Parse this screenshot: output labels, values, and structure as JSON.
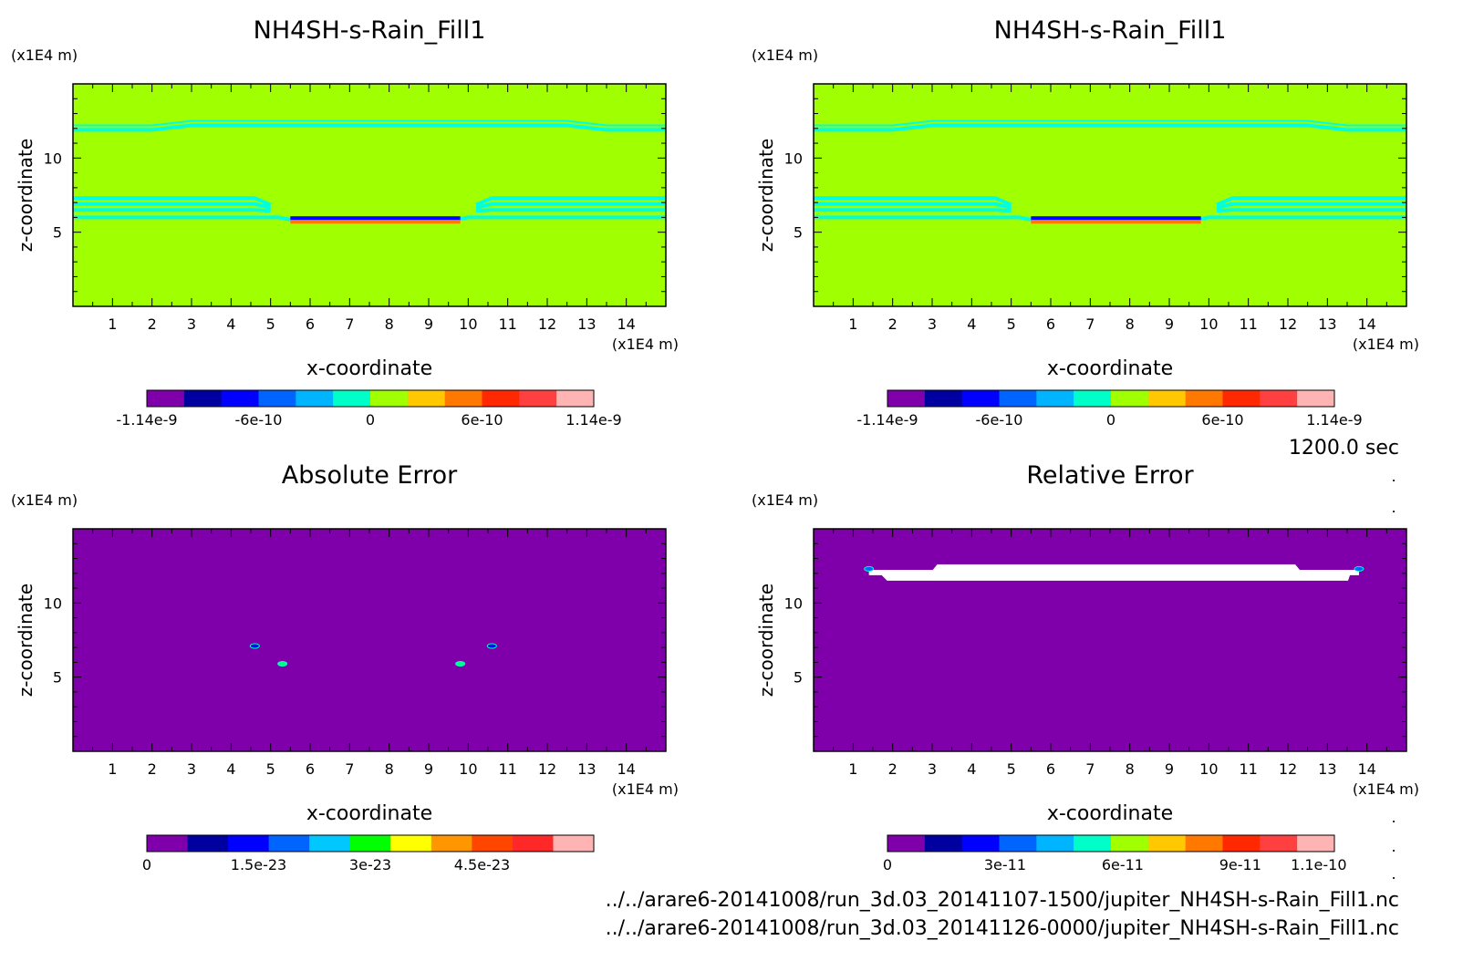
{
  "time_label": "1200.0 sec",
  "footer": {
    "line1": "../../arare6-20141008/run_3d.03_20141107-1500/jupiter_NH4SH-s-Rain_Fill1.nc",
    "line2": "../../arare6-20141008/run_3d.03_20141126-0000/jupiter_NH4SH-s-Rain_Fill1.nc"
  },
  "chart_data": [
    {
      "type": "heatmap",
      "title": "NH4SH-s-Rain_Fill1",
      "xlabel": "x-coordinate",
      "ylabel": "z-coordinate",
      "x_unit": "(x1E4 m)",
      "y_unit": "(x1E4 m)",
      "xlim": [
        0,
        15
      ],
      "ylim": [
        0,
        15
      ],
      "x_ticks": [
        1,
        2,
        3,
        4,
        5,
        6,
        7,
        8,
        9,
        10,
        11,
        12,
        13,
        14
      ],
      "y_ticks": [
        5,
        10
      ],
      "background_value": 0,
      "colorbar": {
        "min": -1.14e-09,
        "max": 1.14e-09,
        "colors": [
          "#7f00aa",
          "#0000a0",
          "#0000ff",
          "#0064ff",
          "#00b4ff",
          "#00ffc8",
          "#a0ff00",
          "#ffc800",
          "#ff7800",
          "#ff2800",
          "#ff4040",
          "#ffb4b4"
        ],
        "tick_labels": [
          "-1.14e-9",
          "-6e-10",
          "0",
          "6e-10",
          "1.14e-9"
        ]
      },
      "features": [
        {
          "kind": "contour",
          "color": "#00ffe0",
          "value_band": "near zero",
          "z_levels": [
            11.9,
            12.2
          ]
        },
        {
          "kind": "contour",
          "color": "#00ffe0",
          "x_range": [
            0,
            5
          ],
          "z_levels": [
            7.3,
            6.9,
            6.5
          ]
        },
        {
          "kind": "contour",
          "color": "#00ffe0",
          "x_range": [
            10,
            15
          ],
          "z_levels": [
            7.3,
            6.9,
            6.5
          ]
        },
        {
          "kind": "contour",
          "color": "#00ffe0",
          "x_range": [
            0,
            15
          ],
          "z_levels": [
            6.0
          ]
        },
        {
          "kind": "band",
          "color": "#0000ff",
          "x_range": [
            5.5,
            9.8
          ],
          "z": 5.95,
          "value": -6e-10
        },
        {
          "kind": "band",
          "color": "#ff7800",
          "x_range": [
            5.5,
            9.8
          ],
          "z": 5.7,
          "value": 6e-10
        }
      ]
    },
    {
      "type": "heatmap",
      "title": "NH4SH-s-Rain_Fill1",
      "xlabel": "x-coordinate",
      "ylabel": "z-coordinate",
      "x_unit": "(x1E4 m)",
      "y_unit": "(x1E4 m)",
      "xlim": [
        0,
        15
      ],
      "ylim": [
        0,
        15
      ],
      "x_ticks": [
        1,
        2,
        3,
        4,
        5,
        6,
        7,
        8,
        9,
        10,
        11,
        12,
        13,
        14
      ],
      "y_ticks": [
        5,
        10
      ],
      "background_value": 0,
      "colorbar": {
        "min": -1.14e-09,
        "max": 1.14e-09,
        "colors": [
          "#7f00aa",
          "#0000a0",
          "#0000ff",
          "#0064ff",
          "#00b4ff",
          "#00ffc8",
          "#a0ff00",
          "#ffc800",
          "#ff7800",
          "#ff2800",
          "#ff4040",
          "#ffb4b4"
        ],
        "tick_labels": [
          "-1.14e-9",
          "-6e-10",
          "0",
          "6e-10",
          "1.14e-9"
        ]
      },
      "features": [
        {
          "kind": "contour",
          "color": "#00ffe0",
          "value_band": "near zero",
          "z_levels": [
            11.9,
            12.2
          ]
        },
        {
          "kind": "contour",
          "color": "#00ffe0",
          "x_range": [
            0,
            5
          ],
          "z_levels": [
            7.3,
            6.9,
            6.5
          ]
        },
        {
          "kind": "contour",
          "color": "#00ffe0",
          "x_range": [
            10,
            15
          ],
          "z_levels": [
            7.3,
            6.9,
            6.5
          ]
        },
        {
          "kind": "contour",
          "color": "#00ffe0",
          "x_range": [
            0,
            15
          ],
          "z_levels": [
            6.0
          ]
        },
        {
          "kind": "band",
          "color": "#0000ff",
          "x_range": [
            5.5,
            9.8
          ],
          "z": 5.95,
          "value": -6e-10
        },
        {
          "kind": "band",
          "color": "#ff7800",
          "x_range": [
            5.5,
            9.8
          ],
          "z": 5.7,
          "value": 6e-10
        }
      ]
    },
    {
      "type": "heatmap",
      "title": "Absolute Error",
      "xlabel": "x-coordinate",
      "ylabel": "z-coordinate",
      "x_unit": "(x1E4 m)",
      "y_unit": "(x1E4 m)",
      "xlim": [
        0,
        15
      ],
      "ylim": [
        0,
        15
      ],
      "x_ticks": [
        1,
        2,
        3,
        4,
        5,
        6,
        7,
        8,
        9,
        10,
        11,
        12,
        13,
        14
      ],
      "y_ticks": [
        5,
        10
      ],
      "background_value": 0,
      "colorbar": {
        "min": 0,
        "max": 6e-23,
        "colors": [
          "#7f00aa",
          "#0000a0",
          "#0000ff",
          "#0064ff",
          "#00c8ff",
          "#00ff00",
          "#ffff00",
          "#ff9600",
          "#ff4600",
          "#ff2828",
          "#ffb4b4"
        ],
        "tick_labels": [
          "0",
          "1.5e-23",
          "3e-23",
          "4.5e-23"
        ]
      },
      "features": [
        {
          "kind": "spot",
          "color": "#0000ff",
          "x": 4.6,
          "z": 7.1
        },
        {
          "kind": "spot",
          "color": "#0000ff",
          "x": 10.6,
          "z": 7.1
        },
        {
          "kind": "spot",
          "color": "#00ff80",
          "x": 5.3,
          "z": 5.9
        },
        {
          "kind": "spot",
          "color": "#00ff80",
          "x": 9.8,
          "z": 5.9
        }
      ]
    },
    {
      "type": "heatmap",
      "title": "Relative Error",
      "xlabel": "x-coordinate",
      "ylabel": "z-coordinate",
      "x_unit": "(x1E4 m)",
      "y_unit": "(x1E4 m)",
      "xlim": [
        0,
        15
      ],
      "ylim": [
        0,
        15
      ],
      "x_ticks": [
        1,
        2,
        3,
        4,
        5,
        6,
        7,
        8,
        9,
        10,
        11,
        12,
        13,
        14
      ],
      "y_ticks": [
        5,
        10
      ],
      "background_value": 0,
      "colorbar": {
        "min": 0,
        "max": 1.14e-10,
        "colors": [
          "#7f00aa",
          "#0000a0",
          "#0000ff",
          "#0064ff",
          "#00b4ff",
          "#00ffc8",
          "#a0ff00",
          "#ffc800",
          "#ff7800",
          "#ff2800",
          "#ff4040",
          "#ffb4b4"
        ],
        "tick_labels": [
          "0",
          "3e-11",
          "6e-11",
          "9e-11",
          "1.1e-10"
        ]
      },
      "features": [
        {
          "kind": "undefined-region",
          "color": "#ffffff",
          "x_range": [
            1.4,
            13.8
          ],
          "z_range": [
            11.5,
            12.6
          ]
        },
        {
          "kind": "spot",
          "color": "#0064ff",
          "x": 1.4,
          "z": 12.3
        },
        {
          "kind": "spot",
          "color": "#0064ff",
          "x": 13.8,
          "z": 12.3
        }
      ]
    }
  ]
}
